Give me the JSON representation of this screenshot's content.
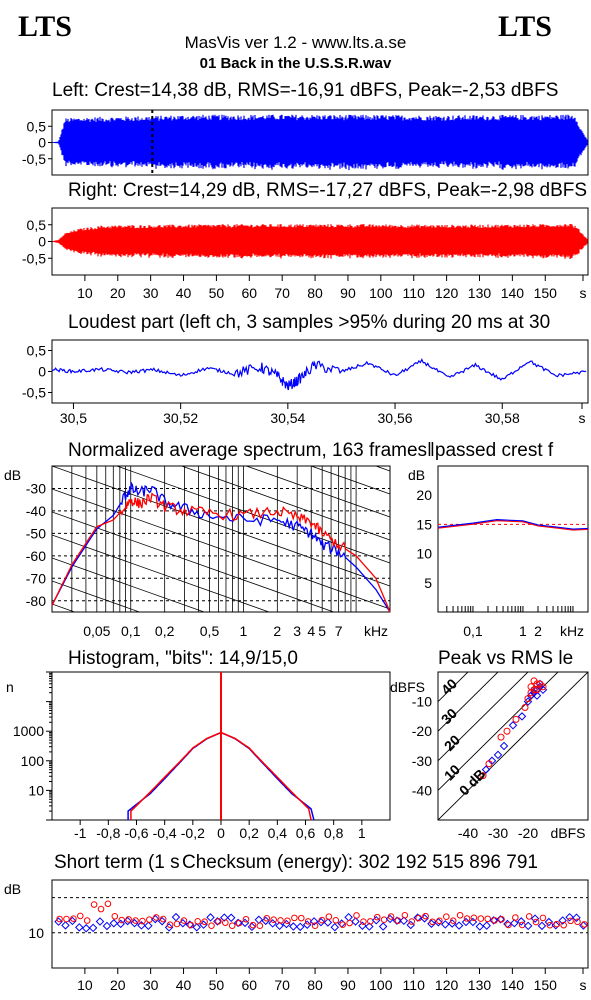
{
  "header": {
    "logo_left": "LTS",
    "logo_right": "LTS",
    "app_title": "MasVis ver 1.2 - www.lts.a.se",
    "file_name": "01 Back in the U.S.S.R.wav"
  },
  "colors": {
    "left": "#0000ff",
    "right": "#ff0000",
    "grid": "#000000"
  },
  "waveforms": {
    "left_title": "Left: Crest=14,38 dB, RMS=-16,91 dBFS, Peak=-2,53 dBFS",
    "right_title": "Right: Crest=14,29 dB, RMS=-17,27 dBFS, Peak=-2,98 dBFS",
    "y_ticks": [
      "0,5",
      "0",
      "-0,5"
    ],
    "x_ticks": [
      "10",
      "20",
      "30",
      "40",
      "50",
      "60",
      "70",
      "80",
      "90",
      "100",
      "110",
      "120",
      "130",
      "140",
      "150",
      "s"
    ]
  },
  "loudest": {
    "title": "Loudest part (left  ch, 3 samples >95% during 20 ms at 30",
    "y_ticks": [
      "0,5",
      "0",
      "-0,5"
    ],
    "x_ticks": [
      "30,5",
      "30,52",
      "30,54",
      "30,56",
      "30,58",
      "s"
    ]
  },
  "spectrum": {
    "title": "Normalized average spectrum, 163 frames‖passed crest f",
    "unit": "dB",
    "y_ticks": [
      "-30",
      "-40",
      "-50",
      "-60",
      "-70",
      "-80"
    ],
    "x_ticks": [
      "0,05",
      "0,1",
      "0,2",
      "0,5",
      "1",
      "2",
      "3",
      "4",
      "5",
      "7",
      "kHz"
    ],
    "crest_unit": "dB",
    "crest_y_ticks": [
      "20",
      "15",
      "10",
      "5"
    ],
    "crest_x_ticks": [
      "0,1",
      "1",
      "2",
      "kHz"
    ]
  },
  "histogram": {
    "title": "Histogram, \"bits\": 14,9/15,0",
    "unit": "n",
    "y_ticks": [
      "1000",
      "100",
      "10"
    ],
    "x_ticks": [
      "-1",
      "-0,8",
      "-0,6",
      "-0,4",
      "-0,2",
      "0",
      "0,2",
      "0,4",
      "0,6",
      "0,8",
      "1"
    ]
  },
  "peak_rms": {
    "title": "Peak vs RMS le",
    "unit": "dBFS",
    "y_ticks": [
      "-10",
      "-20",
      "-30",
      "-40"
    ],
    "x_ticks": [
      "-40",
      "-30",
      "-20",
      "dBFS"
    ],
    "diag_labels": [
      "40",
      "30",
      "20",
      "10",
      "0 dB"
    ]
  },
  "short_term": {
    "title": "Short term (1 s",
    "checksum": "Checksum (energy):   302 192 515 896 791",
    "unit": "dB",
    "y_ticks": [
      "10"
    ],
    "x_ticks": [
      "10",
      "20",
      "30",
      "40",
      "50",
      "60",
      "70",
      "80",
      "90",
      "100",
      "110",
      "120",
      "130",
      "140",
      "150",
      "s"
    ]
  },
  "chart_data": [
    {
      "type": "line",
      "name": "left-waveform",
      "x_unit": "s",
      "xlim": [
        0,
        163
      ],
      "ylim": [
        -1,
        1
      ],
      "cursor_at": 30.5,
      "envelope": [
        [
          0,
          0.01
        ],
        [
          2,
          0.03
        ],
        [
          4,
          0.75
        ],
        [
          10,
          0.78
        ],
        [
          20,
          0.8
        ],
        [
          30,
          0.82
        ],
        [
          40,
          0.85
        ],
        [
          60,
          0.86
        ],
        [
          80,
          0.86
        ],
        [
          100,
          0.85
        ],
        [
          120,
          0.84
        ],
        [
          140,
          0.85
        ],
        [
          155,
          0.86
        ],
        [
          159,
          0.88
        ],
        [
          161,
          0.4
        ],
        [
          163,
          0.05
        ]
      ]
    },
    {
      "type": "line",
      "name": "right-waveform",
      "x_unit": "s",
      "xlim": [
        0,
        163
      ],
      "ylim": [
        -1,
        1
      ],
      "envelope": [
        [
          0,
          0.01
        ],
        [
          2,
          0.05
        ],
        [
          4,
          0.25
        ],
        [
          8,
          0.38
        ],
        [
          15,
          0.48
        ],
        [
          30,
          0.5
        ],
        [
          60,
          0.52
        ],
        [
          90,
          0.52
        ],
        [
          120,
          0.5
        ],
        [
          150,
          0.52
        ],
        [
          158,
          0.55
        ],
        [
          160,
          0.4
        ],
        [
          163,
          0.05
        ]
      ]
    },
    {
      "type": "line",
      "name": "loudest-part",
      "x_unit": "s",
      "xlim": [
        30.496,
        30.596
      ],
      "ylim": [
        -0.75,
        0.75
      ],
      "x": [
        30.496,
        30.5,
        30.505,
        30.51,
        30.515,
        30.52,
        30.525,
        30.53,
        30.535,
        30.538,
        30.54,
        30.542,
        30.545,
        30.55,
        30.555,
        30.56,
        30.565,
        30.57,
        30.575,
        30.58,
        30.585,
        30.59,
        30.596
      ],
      "y": [
        0.05,
        0.0,
        0.05,
        -0.02,
        0.04,
        -0.1,
        0.08,
        -0.05,
        0.1,
        -0.1,
        -0.35,
        -0.2,
        0.15,
        0.0,
        0.2,
        -0.1,
        0.25,
        -0.15,
        0.15,
        -0.2,
        0.25,
        -0.1,
        0.0
      ]
    },
    {
      "type": "line",
      "name": "normalized-spectrum",
      "x_unit": "kHz",
      "y_unit": "dB",
      "xlim": [
        0.02,
        20
      ],
      "ylim": [
        -85,
        -20
      ],
      "series": [
        {
          "name": "Left",
          "x": [
            0.02,
            0.03,
            0.05,
            0.07,
            0.09,
            0.1,
            0.12,
            0.15,
            0.2,
            0.3,
            0.5,
            1,
            2,
            3,
            4,
            5,
            7,
            10,
            15,
            20
          ],
          "y": [
            -82,
            -65,
            -48,
            -42,
            -33,
            -30,
            -32,
            -30,
            -36,
            -39,
            -42,
            -44,
            -44,
            -47,
            -50,
            -55,
            -58,
            -65,
            -75,
            -85
          ]
        },
        {
          "name": "Right",
          "x": [
            0.02,
            0.03,
            0.05,
            0.07,
            0.09,
            0.1,
            0.12,
            0.15,
            0.2,
            0.3,
            0.5,
            1,
            2,
            3,
            4,
            5,
            7,
            10,
            15,
            20
          ],
          "y": [
            -82,
            -64,
            -47,
            -44,
            -38,
            -35,
            -37,
            -34,
            -38,
            -40,
            -41,
            -42,
            -40,
            -43,
            -45,
            -50,
            -55,
            -60,
            -70,
            -85
          ]
        }
      ]
    },
    {
      "type": "line",
      "name": "crest-per-band",
      "x_unit": "kHz",
      "y_unit": "dB",
      "xlim": [
        0.02,
        20
      ],
      "ylim": [
        0,
        25
      ],
      "series": [
        {
          "name": "Average",
          "x": [
            0.02,
            0.1,
            0.3,
            1,
            2,
            5,
            10,
            20
          ],
          "y": [
            14.5,
            15.2,
            15.8,
            15.6,
            14.9,
            14.5,
            14.2,
            14.3
          ]
        }
      ]
    },
    {
      "type": "line",
      "name": "histogram",
      "x_unit": "sample value",
      "y_unit": "n",
      "xlim": [
        -1.2,
        1.2
      ],
      "ylim_log": [
        1,
        100000
      ],
      "series": [
        {
          "name": "Left",
          "x": [
            -0.66,
            -0.5,
            -0.4,
            -0.3,
            -0.2,
            -0.1,
            0,
            0.1,
            0.2,
            0.3,
            0.4,
            0.5,
            0.66
          ],
          "y": [
            2,
            8,
            25,
            80,
            260,
            560,
            900,
            560,
            260,
            80,
            25,
            8,
            2
          ]
        },
        {
          "name": "Right",
          "x": [
            -0.64,
            -0.5,
            -0.4,
            -0.3,
            -0.2,
            -0.1,
            0,
            0.1,
            0.2,
            0.3,
            0.4,
            0.5,
            0.64
          ],
          "y": [
            2,
            9,
            28,
            85,
            270,
            570,
            900,
            570,
            270,
            85,
            28,
            9,
            2
          ]
        }
      ]
    },
    {
      "type": "scatter",
      "name": "peak-vs-rms",
      "x_unit": "dBFS",
      "y_unit": "dBFS",
      "xlim": [
        -50,
        0
      ],
      "ylim": [
        -50,
        0
      ],
      "series": [
        {
          "name": "Left",
          "x": [
            -34,
            -32,
            -30,
            -28,
            -25,
            -22,
            -20,
            -19,
            -18,
            -17,
            -16,
            -17,
            -18,
            -16,
            -15
          ],
          "y": [
            -33,
            -30,
            -28,
            -25,
            -18,
            -15,
            -10,
            -8,
            -7,
            -6,
            -5,
            -8,
            -6,
            -4,
            -6
          ]
        },
        {
          "name": "Right",
          "x": [
            -35,
            -33,
            -29,
            -27,
            -24,
            -21,
            -20,
            -19,
            -18,
            -17,
            -16,
            -18,
            -19,
            -17,
            -15
          ],
          "y": [
            -35,
            -31,
            -22,
            -20,
            -16,
            -12,
            -9,
            -7,
            -6,
            -4,
            -4,
            -3,
            -5,
            -6,
            -5
          ]
        }
      ]
    },
    {
      "type": "scatter",
      "name": "short-term-crest",
      "x_unit": "s",
      "y_unit": "dB",
      "xlim": [
        0,
        163
      ],
      "ylim": [
        0,
        25
      ],
      "ref_lines": [
        10,
        20
      ],
      "seed": "pseudo"
    }
  ]
}
